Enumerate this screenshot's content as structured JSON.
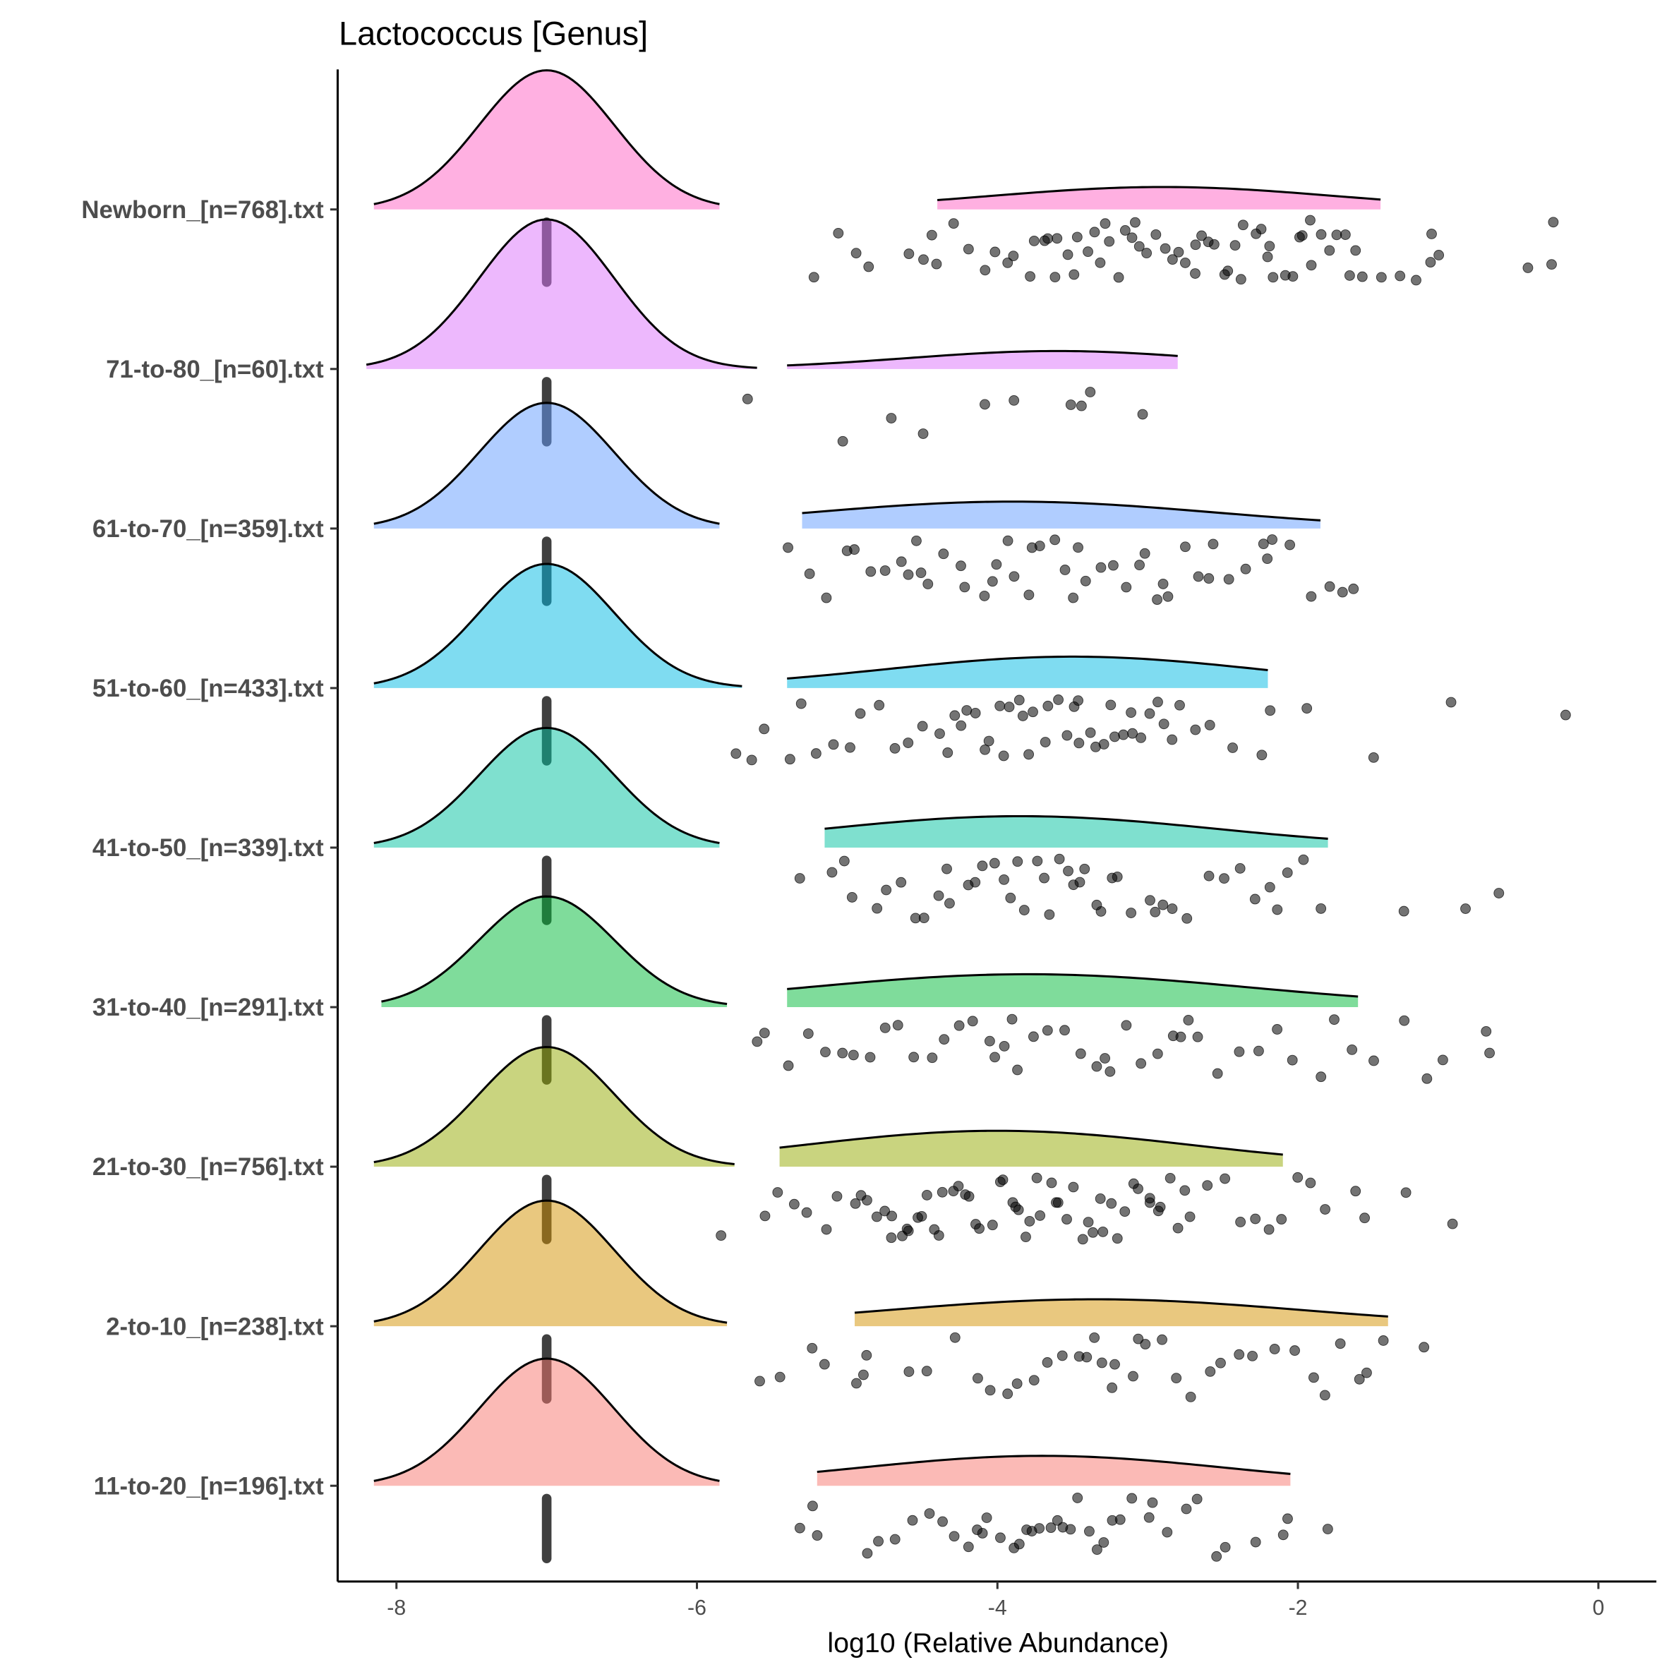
{
  "chart_data": {
    "type": "ridgeline",
    "title": "Lactococcus [Genus]",
    "xlabel": "log10 (Relative Abundance)",
    "ylabel": "",
    "xlim": [
      -8.4,
      0.4
    ],
    "xticks": [
      -8,
      -6,
      -4,
      -2,
      0
    ],
    "xtick_labels": [
      "-8",
      "-6",
      "-4",
      "-2",
      "0"
    ],
    "grid": false,
    "legend": "none",
    "zero_value": -7,
    "groups": [
      {
        "label": "Newborn_[n=768].txt",
        "color": "#FF61C3",
        "left_peak_height": 0.93,
        "left_range": [
          -8.15,
          -5.85
        ],
        "right_range": [
          -4.4,
          -1.45
        ],
        "right_peak": -2.9,
        "right_peak_height": 0.15,
        "points": [
          -5.2,
          -5.05,
          -4.95,
          -4.85,
          -4.6,
          -4.5,
          -4.45,
          -4.4,
          -4.3,
          -4.2,
          -4.1,
          -4.0,
          -3.95,
          -3.9,
          -3.8,
          -3.75,
          -3.7,
          -3.65,
          -3.6,
          -3.55,
          -3.5,
          -3.45,
          -3.4,
          -3.35,
          -3.3,
          -3.25,
          -3.2,
          -3.15,
          -3.1,
          -3.05,
          -3.0,
          -2.95,
          -2.9,
          -2.85,
          -2.8,
          -2.75,
          -2.7,
          -2.65,
          -2.6,
          -2.55,
          -2.5,
          -2.45,
          -2.4,
          -2.35,
          -2.3,
          -2.25,
          -2.2,
          -2.15,
          -2.1,
          -2.05,
          -2.0,
          -1.95,
          -1.9,
          -1.85,
          -1.8,
          -1.75,
          -1.7,
          -1.65,
          -1.6,
          -1.55,
          -1.45,
          -1.3,
          -1.2,
          -1.12,
          -1.1,
          -1.05,
          -0.45,
          -0.32,
          -0.3,
          -3.6,
          -3.3,
          -3.1,
          -2.7,
          -2.4,
          -2.2,
          -1.9
        ]
      },
      {
        "label": "71-to-80_[n=60].txt",
        "color": "#DB72FB",
        "left_peak_height": 1.0,
        "left_range": [
          -8.2,
          -5.6
        ],
        "right_range": [
          -5.4,
          -2.8
        ],
        "right_peak": -3.6,
        "right_peak_height": 0.12,
        "points": [
          -4.1,
          -3.5,
          -3.05,
          -4.7,
          -3.9,
          -3.45,
          -5.65,
          -5.05,
          -4.5,
          -3.4
        ]
      },
      {
        "label": "61-to-70_[n=359].txt",
        "color": "#619CFF",
        "left_peak_height": 0.84,
        "left_range": [
          -8.15,
          -5.85
        ],
        "right_range": [
          -5.3,
          -1.85
        ],
        "right_peak": -3.9,
        "right_peak_height": 0.18,
        "points": [
          -5.4,
          -5.25,
          -5.15,
          -5.0,
          -4.95,
          -4.85,
          -4.75,
          -4.65,
          -4.55,
          -4.5,
          -4.45,
          -4.35,
          -4.25,
          -4.2,
          -4.1,
          -4.05,
          -3.95,
          -3.9,
          -3.8,
          -3.75,
          -3.7,
          -3.6,
          -3.5,
          -3.45,
          -3.4,
          -3.3,
          -3.25,
          -3.15,
          -3.05,
          -3.0,
          -2.95,
          -2.85,
          -2.75,
          -2.65,
          -2.55,
          -2.45,
          -2.35,
          -2.25,
          -2.2,
          -2.15,
          -2.05,
          -1.9,
          -1.8,
          -1.7,
          -1.65,
          -4.6,
          -4.0,
          -3.55,
          -2.9,
          -2.6
        ]
      },
      {
        "label": "51-to-60_[n=433].txt",
        "color": "#00B9E3",
        "left_peak_height": 0.83,
        "left_range": [
          -8.15,
          -5.7
        ],
        "right_range": [
          -5.4,
          -2.2
        ],
        "right_peak": -3.5,
        "right_peak_height": 0.21,
        "points": [
          -5.75,
          -5.65,
          -5.55,
          -5.4,
          -5.3,
          -5.2,
          -5.1,
          -5.0,
          -4.9,
          -4.8,
          -4.7,
          -4.6,
          -4.5,
          -4.4,
          -4.3,
          -4.25,
          -4.2,
          -4.15,
          -4.1,
          -4.05,
          -4.0,
          -3.95,
          -3.9,
          -3.85,
          -3.8,
          -3.75,
          -3.7,
          -3.65,
          -3.6,
          -3.55,
          -3.5,
          -3.45,
          -3.4,
          -3.35,
          -3.3,
          -3.25,
          -3.2,
          -3.15,
          -3.1,
          -3.05,
          -3.0,
          -2.95,
          -2.9,
          -2.85,
          -2.8,
          -2.7,
          -2.6,
          -2.45,
          -2.25,
          -2.2,
          -1.95,
          -1.48,
          -1.0,
          -0.2,
          -4.35,
          -3.85,
          -3.45,
          -3.1
        ]
      },
      {
        "label": "41-to-50_[n=339].txt",
        "color": "#00C19F",
        "left_peak_height": 0.8,
        "left_range": [
          -8.15,
          -5.85
        ],
        "right_range": [
          -5.15,
          -1.8
        ],
        "right_peak": -3.85,
        "right_peak_height": 0.21,
        "points": [
          -5.3,
          -5.1,
          -5.0,
          -4.95,
          -4.8,
          -4.75,
          -4.65,
          -4.55,
          -4.5,
          -4.4,
          -4.35,
          -4.3,
          -4.2,
          -4.15,
          -4.1,
          -4.0,
          -3.95,
          -3.9,
          -3.85,
          -3.8,
          -3.75,
          -3.7,
          -3.65,
          -3.6,
          -3.55,
          -3.5,
          -3.4,
          -3.35,
          -3.3,
          -3.25,
          -3.2,
          -3.1,
          -3.0,
          -2.95,
          -2.85,
          -2.75,
          -2.6,
          -2.5,
          -2.4,
          -2.3,
          -2.2,
          -2.15,
          -2.05,
          -1.95,
          -1.85,
          -1.3,
          -0.9,
          -0.65,
          -3.45,
          -2.9
        ]
      },
      {
        "label": "31-to-40_[n=291].txt",
        "color": "#00BA38",
        "left_peak_height": 0.74,
        "left_range": [
          -8.1,
          -5.8
        ],
        "right_range": [
          -5.4,
          -1.6
        ],
        "right_peak": -3.8,
        "right_peak_height": 0.22,
        "points": [
          -5.6,
          -5.55,
          -5.4,
          -5.25,
          -5.15,
          -5.05,
          -4.95,
          -4.85,
          -4.75,
          -4.65,
          -4.55,
          -4.45,
          -4.35,
          -4.25,
          -4.15,
          -4.05,
          -4.0,
          -3.95,
          -3.85,
          -3.75,
          -3.65,
          -3.55,
          -3.45,
          -3.35,
          -3.25,
          -3.15,
          -3.05,
          -2.95,
          -2.85,
          -2.75,
          -2.65,
          -2.55,
          -2.4,
          -2.25,
          -2.15,
          -2.05,
          -1.85,
          -1.75,
          -1.65,
          -1.5,
          -1.3,
          -1.15,
          -1.05,
          -0.75,
          -0.73,
          -3.9,
          -3.3,
          -2.8
        ]
      },
      {
        "label": "21-to-30_[n=756].txt",
        "color": "#93AA00",
        "left_peak_height": 0.8,
        "left_range": [
          -8.15,
          -5.75
        ],
        "right_range": [
          -5.45,
          -2.1
        ],
        "right_peak": -4.0,
        "right_peak_height": 0.24,
        "points": [
          -5.85,
          -5.55,
          -5.45,
          -5.35,
          -5.25,
          -5.15,
          -5.05,
          -4.95,
          -4.9,
          -4.85,
          -4.8,
          -4.75,
          -4.7,
          -4.65,
          -4.6,
          -4.55,
          -4.5,
          -4.45,
          -4.4,
          -4.35,
          -4.3,
          -4.25,
          -4.2,
          -4.15,
          -4.1,
          -4.05,
          -4.0,
          -3.95,
          -3.9,
          -3.85,
          -3.8,
          -3.75,
          -3.7,
          -3.65,
          -3.6,
          -3.55,
          -3.5,
          -3.45,
          -3.4,
          -3.35,
          -3.3,
          -3.25,
          -3.2,
          -3.15,
          -3.1,
          -3.05,
          -3.0,
          -2.95,
          -2.9,
          -2.85,
          -2.8,
          -2.75,
          -2.7,
          -2.6,
          -2.5,
          -2.4,
          -2.3,
          -2.2,
          -2.1,
          -2.0,
          -1.9,
          -1.8,
          -1.6,
          -1.55,
          -1.27,
          -0.98,
          -4.6,
          -4.2,
          -3.9,
          -3.6,
          -3.3,
          -3.0,
          -4.7,
          -4.4,
          -3.8
        ]
      },
      {
        "label": "2-to-10_[n=238].txt",
        "color": "#D39200",
        "left_peak_height": 0.84,
        "left_range": [
          -8.15,
          -5.8
        ],
        "right_range": [
          -4.95,
          -1.4
        ],
        "right_peak": -3.35,
        "right_peak_height": 0.18,
        "points": [
          -5.6,
          -5.45,
          -5.25,
          -5.15,
          -4.95,
          -4.9,
          -4.85,
          -4.6,
          -4.45,
          -4.3,
          -4.15,
          -4.05,
          -3.95,
          -3.85,
          -3.75,
          -3.65,
          -3.55,
          -3.45,
          -3.35,
          -3.3,
          -3.25,
          -3.2,
          -3.1,
          -3.0,
          -2.9,
          -2.8,
          -2.7,
          -2.6,
          -2.5,
          -2.4,
          -2.3,
          -2.15,
          -2.0,
          -1.9,
          -1.8,
          -1.7,
          -1.6,
          -1.55,
          -1.45,
          -1.15,
          -3.4,
          -3.05
        ]
      },
      {
        "label": "11-to-20_[n=196].txt",
        "color": "#F8766D",
        "left_peak_height": 0.85,
        "left_range": [
          -8.15,
          -5.85
        ],
        "right_range": [
          -5.2,
          -2.05
        ],
        "right_peak": -3.7,
        "right_peak_height": 0.2,
        "points": [
          -5.3,
          -5.25,
          -5.2,
          -4.85,
          -4.8,
          -4.7,
          -4.55,
          -4.45,
          -4.35,
          -4.3,
          -4.2,
          -4.15,
          -4.05,
          -4.0,
          -3.9,
          -3.85,
          -3.8,
          -3.75,
          -3.7,
          -3.6,
          -3.55,
          -3.5,
          -3.45,
          -3.4,
          -3.35,
          -3.3,
          -3.25,
          -3.2,
          -3.1,
          -2.95,
          -2.85,
          -2.75,
          -2.65,
          -2.55,
          -2.5,
          -2.3,
          -2.1,
          -2.05,
          -1.8,
          -4.1,
          -3.65,
          -3.0
        ]
      }
    ]
  }
}
